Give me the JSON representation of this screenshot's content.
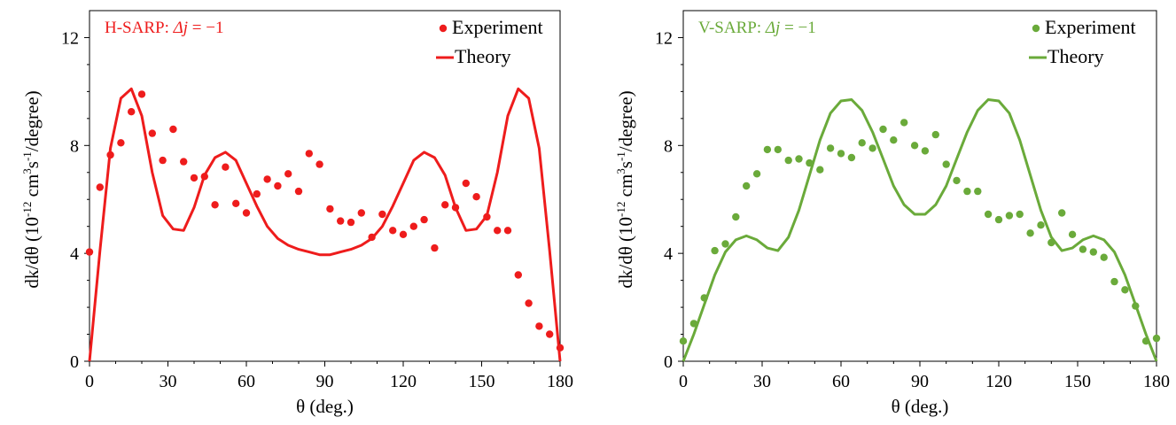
{
  "chart_data": [
    {
      "type": "scatter",
      "annotation": {
        "prefix": "H-SARP: ",
        "var": "Δj",
        "eq": " = −1"
      },
      "xlabel": "θ (deg.)",
      "ylabel": {
        "base": "dk/dθ (10",
        "sup1": "-12",
        "mid1": " cm",
        "sup2": "3",
        "mid2": "s",
        "sup3": "-1",
        "end": "/degree)"
      },
      "xlim": [
        0,
        180
      ],
      "ylim": [
        0,
        13
      ],
      "xticks": [
        0,
        30,
        60,
        90,
        120,
        150,
        180
      ],
      "yticks": [
        0,
        4,
        8,
        12
      ],
      "legend_position": "top-right",
      "color": "#ee1c1c",
      "series": [
        {
          "name": "Experiment",
          "kind": "scatter",
          "x": [
            0,
            4,
            8,
            12,
            16,
            20,
            24,
            28,
            32,
            36,
            40,
            44,
            48,
            52,
            56,
            60,
            64,
            68,
            72,
            76,
            80,
            84,
            88,
            92,
            96,
            100,
            104,
            108,
            112,
            116,
            120,
            124,
            128,
            132,
            136,
            140,
            144,
            148,
            152,
            156,
            160,
            164,
            168,
            172,
            176,
            180
          ],
          "y": [
            4.05,
            6.45,
            7.65,
            8.1,
            9.25,
            9.9,
            8.45,
            7.45,
            8.6,
            7.4,
            6.8,
            6.85,
            5.8,
            7.2,
            5.85,
            5.5,
            6.2,
            6.75,
            6.5,
            6.95,
            6.3,
            7.7,
            7.3,
            5.65,
            5.2,
            5.15,
            5.5,
            4.6,
            5.45,
            4.85,
            4.7,
            5.0,
            5.25,
            4.2,
            5.8,
            5.7,
            6.6,
            6.1,
            5.35,
            4.85,
            4.85,
            3.2,
            2.15,
            1.3,
            1.0,
            0.5
          ]
        },
        {
          "name": "Theory",
          "kind": "line",
          "x": [
            0,
            4,
            8,
            12,
            16,
            20,
            24,
            28,
            32,
            36,
            40,
            44,
            48,
            52,
            56,
            60,
            64,
            68,
            72,
            76,
            80,
            84,
            88,
            90,
            92,
            96,
            100,
            104,
            108,
            112,
            116,
            120,
            124,
            128,
            132,
            136,
            140,
            144,
            148,
            152,
            156,
            160,
            164,
            168,
            172,
            176,
            180
          ],
          "y": [
            0,
            4.1,
            7.9,
            9.75,
            10.1,
            9.1,
            7.0,
            5.4,
            4.9,
            4.85,
            5.7,
            6.9,
            7.55,
            7.75,
            7.45,
            6.6,
            5.75,
            5.0,
            4.55,
            4.3,
            4.15,
            4.05,
            3.95,
            3.95,
            3.95,
            4.05,
            4.15,
            4.3,
            4.55,
            5.0,
            5.75,
            6.6,
            7.45,
            7.75,
            7.55,
            6.9,
            5.7,
            4.85,
            4.9,
            5.4,
            7.0,
            9.1,
            10.1,
            9.75,
            7.9,
            4.1,
            0
          ]
        }
      ]
    },
    {
      "type": "scatter",
      "annotation": {
        "prefix": "V-SARP: ",
        "var": "Δj",
        "eq": " = −1"
      },
      "xlabel": "θ (deg.)",
      "ylabel": {
        "base": "dk/dθ (10",
        "sup1": "-12",
        "mid1": " cm",
        "sup2": "3",
        "mid2": "s",
        "sup3": "-1",
        "end": "/degree)"
      },
      "xlim": [
        0,
        180
      ],
      "ylim": [
        0,
        13
      ],
      "xticks": [
        0,
        30,
        60,
        90,
        120,
        150,
        180
      ],
      "yticks": [
        0,
        4,
        8,
        12
      ],
      "legend_position": "top-right",
      "color": "#6aaa3a",
      "series": [
        {
          "name": "Experiment",
          "kind": "scatter",
          "x": [
            0,
            4,
            8,
            12,
            16,
            20,
            24,
            28,
            32,
            36,
            40,
            44,
            48,
            52,
            56,
            60,
            64,
            68,
            72,
            76,
            80,
            84,
            88,
            92,
            96,
            100,
            104,
            108,
            112,
            116,
            120,
            124,
            128,
            132,
            136,
            140,
            144,
            148,
            152,
            156,
            160,
            164,
            168,
            172,
            176,
            180
          ],
          "y": [
            0.75,
            1.4,
            2.35,
            4.1,
            4.35,
            5.35,
            6.5,
            6.95,
            7.85,
            7.85,
            7.45,
            7.5,
            7.35,
            7.1,
            7.9,
            7.7,
            7.55,
            8.1,
            7.9,
            8.6,
            8.2,
            8.85,
            8.0,
            7.8,
            8.4,
            7.3,
            6.7,
            6.3,
            6.3,
            5.45,
            5.25,
            5.4,
            5.45,
            4.75,
            5.05,
            4.4,
            5.5,
            4.7,
            4.15,
            4.05,
            3.85,
            2.95,
            2.65,
            2.05,
            0.75,
            0.85
          ]
        },
        {
          "name": "Theory",
          "kind": "line",
          "x": [
            0,
            4,
            8,
            12,
            16,
            20,
            24,
            28,
            32,
            36,
            40,
            44,
            48,
            52,
            56,
            60,
            64,
            68,
            72,
            76,
            80,
            84,
            88,
            90,
            92,
            96,
            100,
            104,
            108,
            112,
            116,
            120,
            124,
            128,
            132,
            136,
            140,
            144,
            148,
            152,
            156,
            160,
            164,
            168,
            172,
            176,
            180
          ],
          "y": [
            0,
            1.0,
            2.1,
            3.2,
            4.05,
            4.5,
            4.65,
            4.5,
            4.2,
            4.1,
            4.6,
            5.6,
            6.9,
            8.2,
            9.2,
            9.65,
            9.7,
            9.3,
            8.5,
            7.5,
            6.5,
            5.8,
            5.45,
            5.45,
            5.45,
            5.8,
            6.5,
            7.5,
            8.5,
            9.3,
            9.7,
            9.65,
            9.2,
            8.2,
            6.9,
            5.6,
            4.6,
            4.1,
            4.2,
            4.5,
            4.65,
            4.5,
            4.05,
            3.2,
            2.1,
            1.0,
            0
          ]
        }
      ]
    }
  ]
}
